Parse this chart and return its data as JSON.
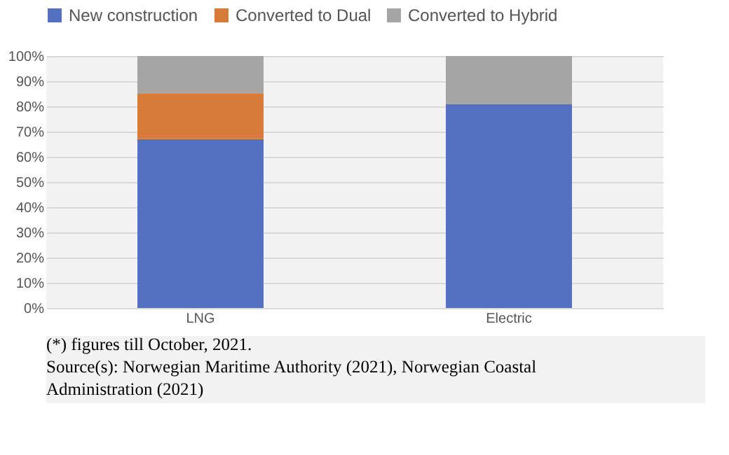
{
  "chart_data": {
    "type": "bar",
    "stacked": true,
    "categories": [
      "LNG",
      "Electric"
    ],
    "series": [
      {
        "name": "New construction",
        "color": "#5470c1",
        "values": [
          67,
          81
        ]
      },
      {
        "name": "Converted to Dual",
        "color": "#d67b3a",
        "values": [
          18,
          0
        ]
      },
      {
        "name": "Converted to Hybrid",
        "color": "#a5a5a5",
        "values": [
          15,
          19
        ]
      }
    ],
    "ylim": [
      0,
      100
    ],
    "yticks": [
      {
        "value": 0,
        "label": "0%"
      },
      {
        "value": 10,
        "label": "10%"
      },
      {
        "value": 20,
        "label": "20%"
      },
      {
        "value": 30,
        "label": "30%"
      },
      {
        "value": 40,
        "label": "40%"
      },
      {
        "value": 50,
        "label": "50%"
      },
      {
        "value": 60,
        "label": "60%"
      },
      {
        "value": 70,
        "label": "70%"
      },
      {
        "value": 80,
        "label": "80%"
      },
      {
        "value": 90,
        "label": "90%"
      },
      {
        "value": 100,
        "label": "100%"
      }
    ],
    "grid": "y",
    "legend": "top",
    "annotations": [
      "(*) figures till October, 2021.",
      "Source(s): Norwegian Maritime Authority (2021), Norwegian Coastal Administration (2021)"
    ]
  }
}
